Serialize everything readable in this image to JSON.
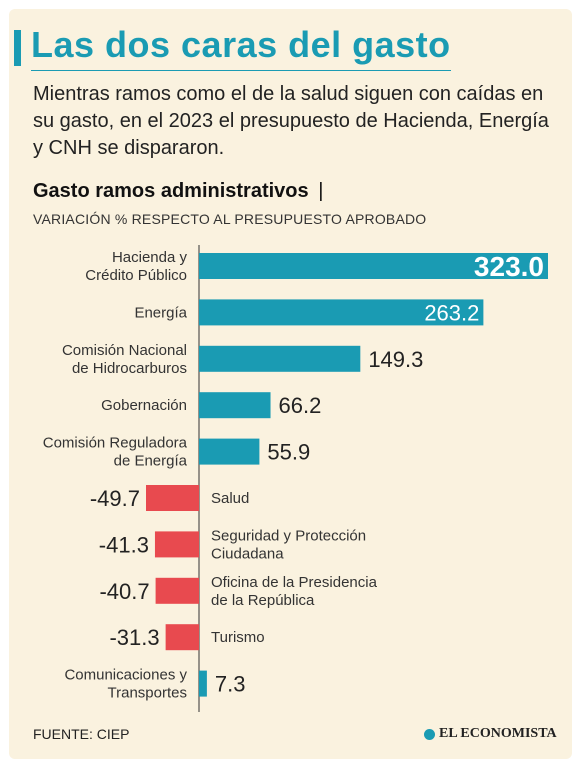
{
  "header": {
    "title": "Las dos caras del gasto",
    "subtitle": "Mientras ramos como el de la salud siguen con caídas en su gasto, en el 2023 el presupuesto de Hacienda, Energía y CNH se dispararon.",
    "accent_color": "#1a9bb3"
  },
  "chart_data": {
    "type": "bar",
    "orientation": "horizontal",
    "title": "Gasto ramos administrativos",
    "title_separator": "|",
    "subtitle": "VARIACIÓN % RESPECTO AL PRESUPUESTO APROBADO",
    "categories": [
      [
        "Hacienda y",
        "Crédito Público"
      ],
      [
        "Energía"
      ],
      [
        "Comisión Nacional",
        "de Hidrocarburos"
      ],
      [
        "Gobernación"
      ],
      [
        "Comisión Reguladora",
        "de Energía"
      ],
      [
        "Salud"
      ],
      [
        "Seguridad y Protección",
        "Ciudadana"
      ],
      [
        "Oficina de la Presidencia",
        "de la República"
      ],
      [
        "Turismo"
      ],
      [
        "Comunicaciones y",
        "Transportes"
      ]
    ],
    "values": [
      323.0,
      263.2,
      149.3,
      66.2,
      55.9,
      -49.7,
      -41.3,
      -40.7,
      -31.3,
      7.3
    ],
    "value_labels": [
      "323.0",
      "263.2",
      "149.3",
      "66.2",
      "55.9",
      "-49.7",
      "-41.3",
      "-40.7",
      "-31.3",
      "7.3"
    ],
    "colors": {
      "positive": "#1a9bb3",
      "negative": "#e84a4f"
    },
    "xlim": [
      -49.7,
      323.0
    ],
    "grid": false,
    "legend": "none"
  },
  "footer": {
    "source": "FUENTE: CIEP",
    "brand": "EL ECONOMISTA"
  }
}
